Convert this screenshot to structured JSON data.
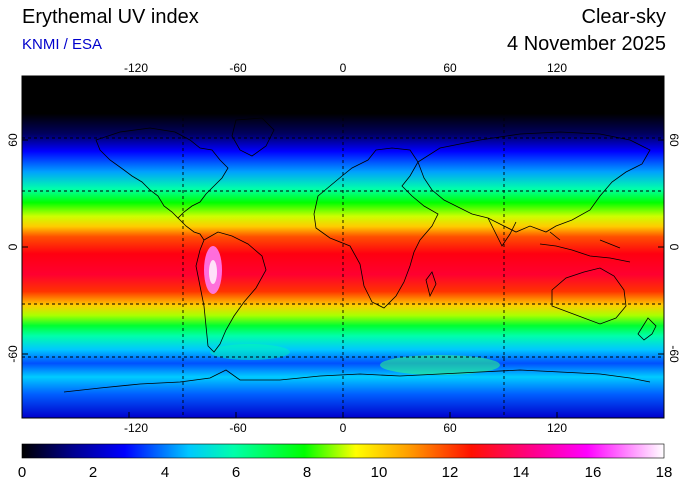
{
  "header": {
    "title": "Erythemal UV index",
    "source": "KNMI / ESA",
    "mode": "Clear-sky",
    "date": "4 November 2025"
  },
  "map": {
    "type": "heatmap",
    "projection": "equirectangular",
    "lon_range": [
      -180,
      180
    ],
    "lat_range": [
      -90,
      90
    ],
    "lon_ticks": [
      "-120",
      "-60",
      "0",
      "60",
      "120"
    ],
    "lat_ticks": [
      "60",
      "0",
      "-60"
    ],
    "lat_ticks_right": [
      "60",
      "0",
      "-60"
    ],
    "gridlines": true,
    "gridline_lats": [
      66.5,
      23.5,
      -23.5,
      -66.5
    ],
    "gridline_lons": [
      -90,
      0,
      90
    ]
  },
  "colorbar": {
    "ticks": [
      "0",
      "2",
      "4",
      "6",
      "8",
      "10",
      "12",
      "14",
      "16",
      "18"
    ],
    "min": 0,
    "max": 18
  },
  "colors": {
    "scale": [
      "#000000",
      "#00008b",
      "#0000ff",
      "#00bfff",
      "#00ffaa",
      "#00ff00",
      "#b4ff00",
      "#ffff00",
      "#ffa500",
      "#ff4000",
      "#ff0000",
      "#ff007f",
      "#ff00ff",
      "#ffc0ff",
      "#ffffff"
    ]
  }
}
